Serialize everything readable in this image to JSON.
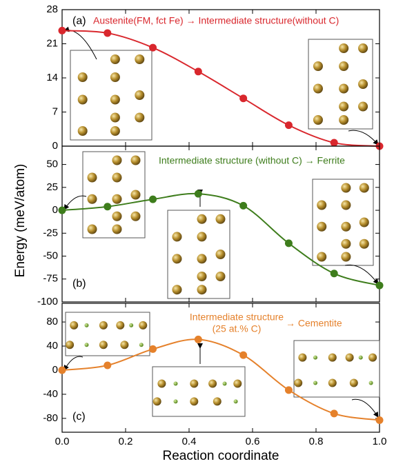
{
  "chart_data": [
    {
      "type": "line",
      "label": "(a)",
      "annotation": "Austenite(FM, fct Fe) → Intermediate structure(without C)",
      "x": [
        0,
        0.143,
        0.286,
        0.429,
        0.571,
        0.714,
        0.857,
        1.0
      ],
      "series": [
        {
          "color": "#d9272d",
          "values": [
            23.7,
            23.2,
            20.2,
            15.3,
            9.8,
            4.3,
            0.7,
            0
          ]
        }
      ],
      "xlim": [
        0,
        1
      ],
      "ylim": [
        0,
        28
      ],
      "yticks": [
        0,
        7,
        14,
        21,
        28
      ]
    },
    {
      "type": "line",
      "label": "(b)",
      "annotation": "Intermediate structure (without C) → Ferrite",
      "ylabel": "Energy (meV/atom)",
      "x": [
        0,
        0.143,
        0.286,
        0.429,
        0.571,
        0.714,
        0.857,
        1.0
      ],
      "series": [
        {
          "color": "#3e7d1c",
          "values": [
            0,
            4,
            12,
            18,
            5,
            -36,
            -69,
            -82
          ]
        }
      ],
      "xlim": [
        0,
        1
      ],
      "ylim": [
        -100,
        70
      ],
      "yticks": [
        -100,
        -75,
        -50,
        -25,
        0,
        25,
        50
      ]
    },
    {
      "type": "line",
      "label": "(c)",
      "annotation": [
        "Intermediate structure",
        "(25 at.% C)",
        "→ Cementite"
      ],
      "xlabel": "Reaction coordinate",
      "x": [
        0,
        0.143,
        0.286,
        0.429,
        0.571,
        0.714,
        0.857,
        1.0
      ],
      "series": [
        {
          "color": "#e5812b",
          "values": [
            0,
            8,
            35,
            51,
            25,
            -33,
            -72,
            -83
          ]
        }
      ],
      "xlim": [
        0,
        1
      ],
      "ylim": [
        -103,
        111
      ],
      "yticks": [
        -80,
        -40,
        0,
        40,
        80
      ],
      "xticks": [
        {
          "value": 0,
          "label": "0.0"
        },
        {
          "value": 0.2,
          "label": "0.2"
        },
        {
          "value": 0.4,
          "label": "0.4"
        },
        {
          "value": 0.6,
          "label": "0.6"
        },
        {
          "value": 0.8,
          "label": "0.8"
        },
        {
          "value": 1.0,
          "label": "1.0"
        }
      ]
    }
  ]
}
